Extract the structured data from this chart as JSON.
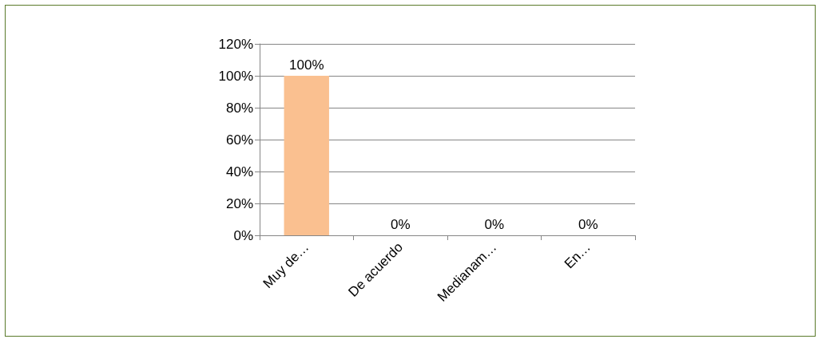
{
  "chart_data": {
    "type": "bar",
    "categories": [
      "Muy de…",
      "De acuerdo",
      "Medianam…",
      "En…"
    ],
    "values": [
      100,
      0,
      0,
      0
    ],
    "value_labels": [
      "100%",
      "0%",
      "0%",
      "0%"
    ],
    "color": "#fac090",
    "ylim": [
      0,
      120
    ],
    "yticks": [
      {
        "value": 0,
        "label": "0%"
      },
      {
        "value": 20,
        "label": "20%"
      },
      {
        "value": 40,
        "label": "40%"
      },
      {
        "value": 60,
        "label": "60%"
      },
      {
        "value": 80,
        "label": "80%"
      },
      {
        "value": 100,
        "label": "100%"
      },
      {
        "value": 120,
        "label": "120%"
      }
    ],
    "grid": "y"
  }
}
